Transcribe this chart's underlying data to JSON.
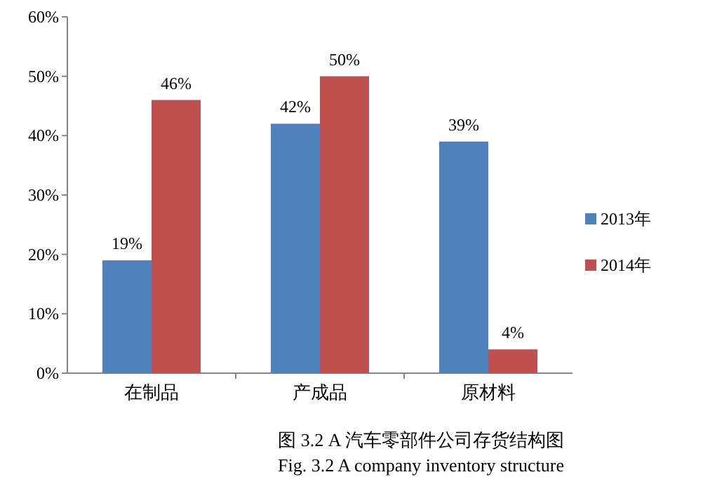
{
  "chart_data": {
    "type": "bar",
    "title": "图 3.2 A 汽车零部件公司存货结构图",
    "subtitle": "Fig. 3.2 A company inventory structure",
    "categories": [
      "在制品",
      "产成品",
      "原材料"
    ],
    "series": [
      {
        "name": "2013年",
        "color": "#4f81bd",
        "values": [
          19,
          42,
          39
        ],
        "value_labels": [
          "19%",
          "42%",
          "39%"
        ]
      },
      {
        "name": "2014年",
        "color": "#c0504d",
        "values": [
          46,
          50,
          4
        ],
        "value_labels": [
          "46%",
          "50%",
          "4%"
        ]
      }
    ],
    "ylim": [
      0,
      60
    ],
    "yticks": [
      {
        "value": 0,
        "label": "0%"
      },
      {
        "value": 10,
        "label": "10%"
      },
      {
        "value": 20,
        "label": "20%"
      },
      {
        "value": 30,
        "label": "30%"
      },
      {
        "value": 40,
        "label": "40%"
      },
      {
        "value": 50,
        "label": "50%"
      },
      {
        "value": 60,
        "label": "60%"
      }
    ],
    "grid": false,
    "legend": "right"
  }
}
